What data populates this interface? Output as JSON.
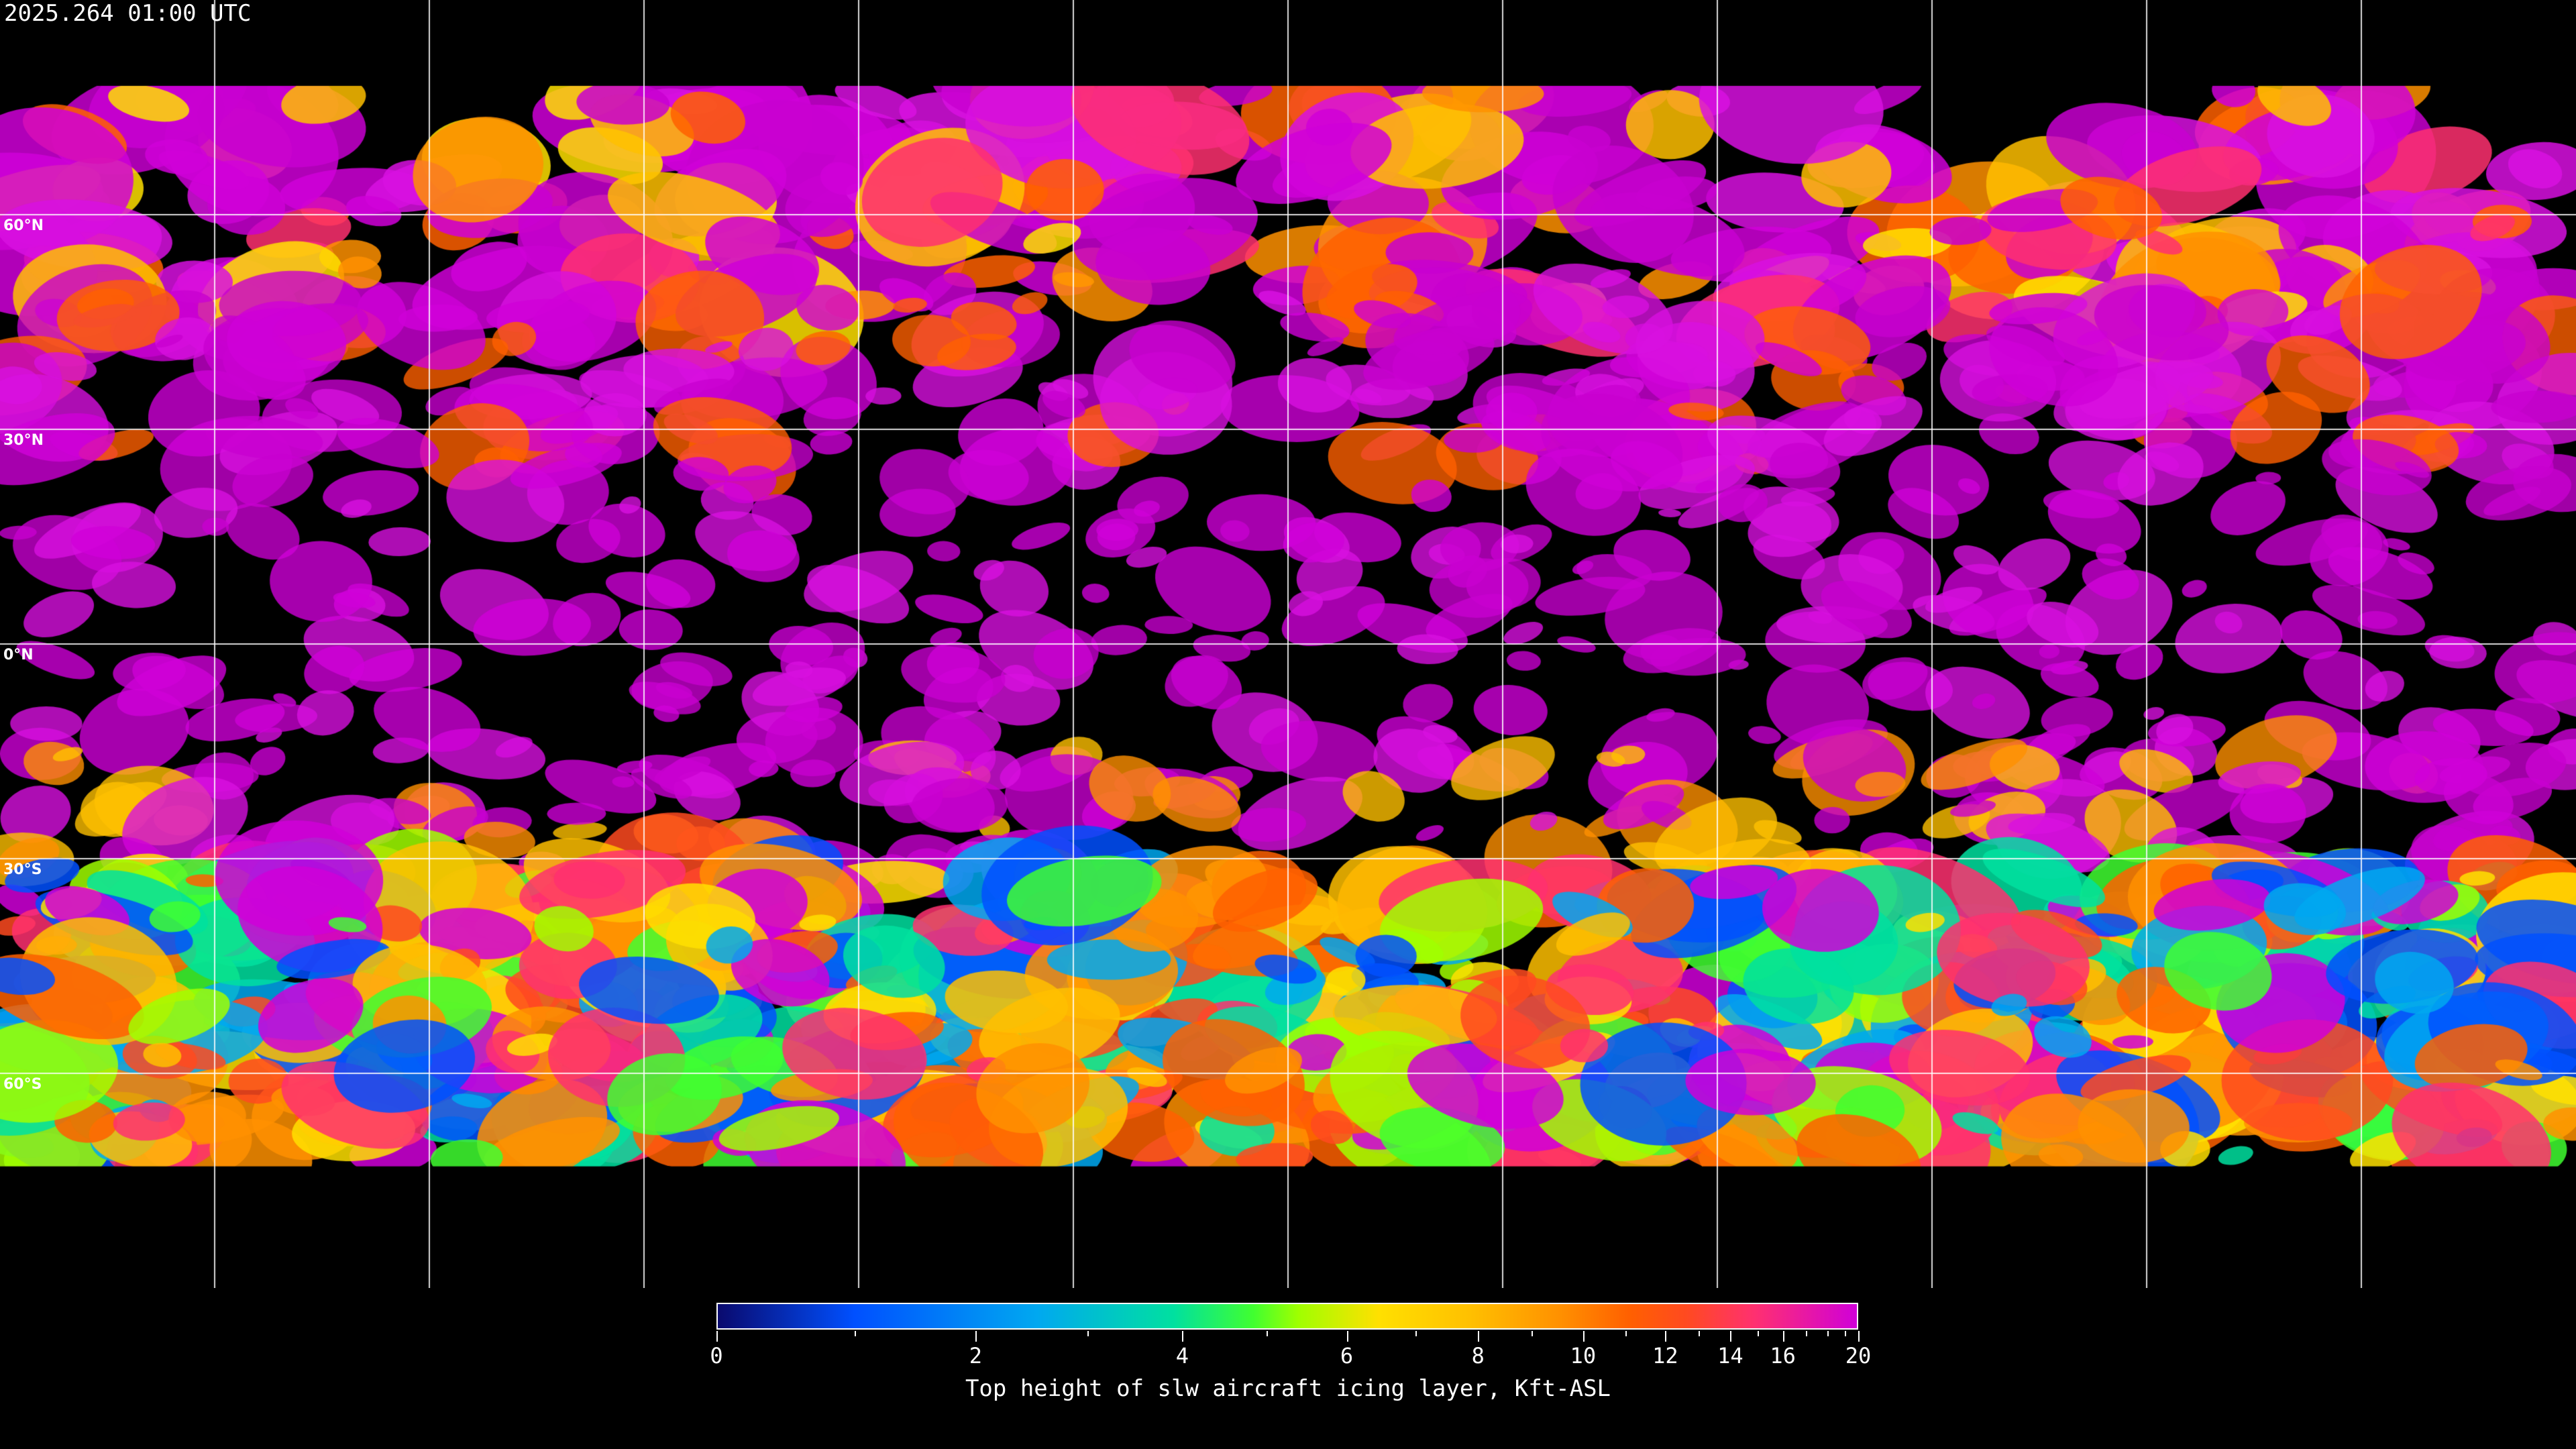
{
  "title": "2025.264 01:00 UTC",
  "map": {
    "projection": "equirectangular",
    "lat_labels": [
      "60°N",
      "30°N",
      "0°N",
      "30°S",
      "60°S"
    ],
    "grid_lat_step_deg": 30,
    "grid_lon_step_deg": 30,
    "background": "#000000",
    "coastline_color": "#ffffff"
  },
  "colorbar": {
    "label": "Top height of slw aircraft icing layer, Kft-ASL",
    "min": 0,
    "max": 20,
    "tick_labels": [
      "0",
      "2",
      "4",
      "6",
      "8",
      "10",
      "12",
      "14",
      "16",
      "20"
    ],
    "colors": [
      "#0a0a6e",
      "#0050ff",
      "#00a8f0",
      "#00e0a0",
      "#40ff30",
      "#a0ff00",
      "#ffe000",
      "#ffc000",
      "#ff9000",
      "#ff6000",
      "#ff4a20",
      "#ff3070",
      "#d000d8"
    ]
  }
}
